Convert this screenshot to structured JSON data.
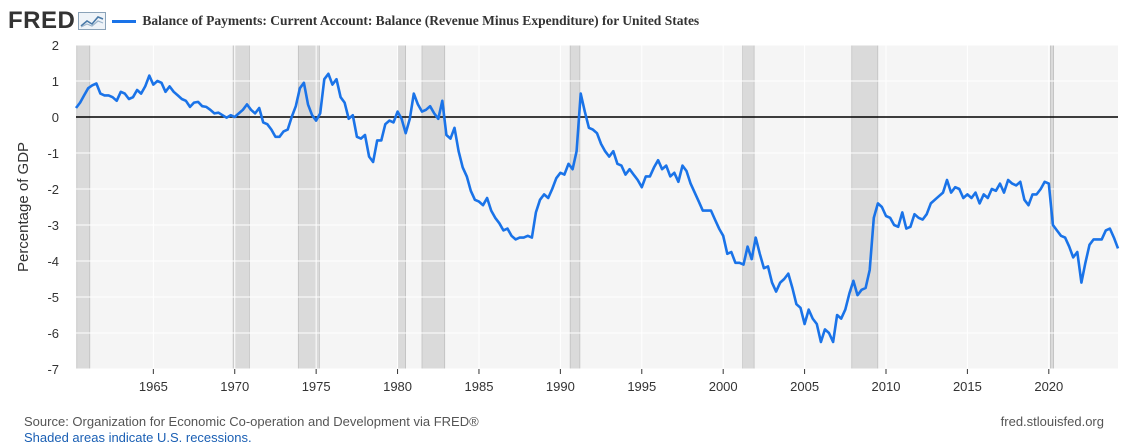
{
  "header": {
    "logo": "FRED",
    "logo_icon": "fred-chart-icon",
    "title": "Balance of Payments: Current Account: Balance (Revenue Minus Expenditure) for United States"
  },
  "footer": {
    "source": "Source: Organization for Economic Co-operation and Development via FRED®",
    "recession_note": "Shaded areas indicate U.S. recessions.",
    "site": "fred.stlouisfed.org"
  },
  "colors": {
    "line": "#1a73e8",
    "plot_bg": "#f5f5f5",
    "recession": "#dadada",
    "zero_line": "#000000"
  },
  "chart_data": {
    "type": "line",
    "title": "Balance of Payments: Current Account: Balance (Revenue Minus Expenditure) for United States",
    "xlabel": "",
    "ylabel": "Percentage of GDP",
    "xlim": [
      1960.25,
      2024.25
    ],
    "ylim": [
      -7,
      2
    ],
    "x_ticks": [
      1965,
      1970,
      1975,
      1980,
      1985,
      1990,
      1995,
      2000,
      2005,
      2010,
      2015,
      2020
    ],
    "y_ticks": [
      2,
      1,
      0,
      -1,
      -2,
      -3,
      -4,
      -5,
      -6,
      -7
    ],
    "grid": true,
    "zero_line": 0,
    "recessions": [
      [
        1960.3,
        1961.1
      ],
      [
        1969.9,
        1970.9
      ],
      [
        1973.9,
        1975.2
      ],
      [
        1980.0,
        1980.5
      ],
      [
        1981.5,
        1982.9
      ],
      [
        1990.6,
        1991.2
      ],
      [
        2001.2,
        2001.9
      ],
      [
        2007.9,
        2009.5
      ],
      [
        2020.1,
        2020.3
      ]
    ],
    "series": [
      {
        "points": [
          [
            1960.25,
            0.25
          ],
          [
            1960.5,
            0.4
          ],
          [
            1960.75,
            0.6
          ],
          [
            1961.0,
            0.8
          ],
          [
            1961.25,
            0.88
          ],
          [
            1961.5,
            0.93
          ],
          [
            1961.75,
            0.65
          ],
          [
            1962.0,
            0.6
          ],
          [
            1962.25,
            0.6
          ],
          [
            1962.5,
            0.55
          ],
          [
            1962.75,
            0.45
          ],
          [
            1963.0,
            0.7
          ],
          [
            1963.25,
            0.65
          ],
          [
            1963.5,
            0.5
          ],
          [
            1963.75,
            0.55
          ],
          [
            1964.0,
            0.75
          ],
          [
            1964.25,
            0.65
          ],
          [
            1964.5,
            0.85
          ],
          [
            1964.75,
            1.15
          ],
          [
            1965.0,
            0.9
          ],
          [
            1965.25,
            1.0
          ],
          [
            1965.5,
            0.95
          ],
          [
            1965.75,
            0.7
          ],
          [
            1966.0,
            0.85
          ],
          [
            1966.25,
            0.7
          ],
          [
            1966.5,
            0.6
          ],
          [
            1966.75,
            0.5
          ],
          [
            1967.0,
            0.45
          ],
          [
            1967.25,
            0.28
          ],
          [
            1967.5,
            0.4
          ],
          [
            1967.75,
            0.42
          ],
          [
            1968.0,
            0.3
          ],
          [
            1968.25,
            0.28
          ],
          [
            1968.5,
            0.2
          ],
          [
            1968.75,
            0.1
          ],
          [
            1969.0,
            0.12
          ],
          [
            1969.25,
            0.05
          ],
          [
            1969.5,
            -0.02
          ],
          [
            1969.75,
            0.05
          ],
          [
            1970.0,
            0.0
          ],
          [
            1970.25,
            0.1
          ],
          [
            1970.5,
            0.2
          ],
          [
            1970.75,
            0.35
          ],
          [
            1971.0,
            0.2
          ],
          [
            1971.25,
            0.1
          ],
          [
            1971.5,
            0.25
          ],
          [
            1971.75,
            -0.15
          ],
          [
            1972.0,
            -0.2
          ],
          [
            1972.25,
            -0.35
          ],
          [
            1972.5,
            -0.55
          ],
          [
            1972.75,
            -0.55
          ],
          [
            1973.0,
            -0.4
          ],
          [
            1973.25,
            -0.35
          ],
          [
            1973.5,
            0.0
          ],
          [
            1973.75,
            0.3
          ],
          [
            1974.0,
            0.8
          ],
          [
            1974.25,
            0.95
          ],
          [
            1974.5,
            0.35
          ],
          [
            1974.75,
            0.05
          ],
          [
            1975.0,
            -0.1
          ],
          [
            1975.25,
            0.1
          ],
          [
            1975.5,
            1.05
          ],
          [
            1975.75,
            1.2
          ],
          [
            1976.0,
            0.9
          ],
          [
            1976.25,
            1.05
          ],
          [
            1976.5,
            0.55
          ],
          [
            1976.75,
            0.4
          ],
          [
            1977.0,
            -0.05
          ],
          [
            1977.25,
            0.05
          ],
          [
            1977.5,
            -0.55
          ],
          [
            1977.75,
            -0.6
          ],
          [
            1978.0,
            -0.5
          ],
          [
            1978.25,
            -1.1
          ],
          [
            1978.5,
            -1.25
          ],
          [
            1978.75,
            -0.65
          ],
          [
            1979.0,
            -0.65
          ],
          [
            1979.25,
            -0.2
          ],
          [
            1979.5,
            -0.1
          ],
          [
            1979.75,
            -0.15
          ],
          [
            1980.0,
            0.15
          ],
          [
            1980.25,
            -0.05
          ],
          [
            1980.5,
            -0.45
          ],
          [
            1980.75,
            -0.05
          ],
          [
            1981.0,
            0.65
          ],
          [
            1981.25,
            0.35
          ],
          [
            1981.5,
            0.15
          ],
          [
            1981.75,
            0.2
          ],
          [
            1982.0,
            0.3
          ],
          [
            1982.25,
            0.1
          ],
          [
            1982.5,
            -0.05
          ],
          [
            1982.75,
            0.45
          ],
          [
            1983.0,
            -0.5
          ],
          [
            1983.25,
            -0.6
          ],
          [
            1983.5,
            -0.3
          ],
          [
            1983.75,
            -0.95
          ],
          [
            1984.0,
            -1.4
          ],
          [
            1984.25,
            -1.65
          ],
          [
            1984.5,
            -2.05
          ],
          [
            1984.75,
            -2.3
          ],
          [
            1985.0,
            -2.35
          ],
          [
            1985.25,
            -2.45
          ],
          [
            1985.5,
            -2.25
          ],
          [
            1985.75,
            -2.6
          ],
          [
            1986.0,
            -2.8
          ],
          [
            1986.25,
            -2.95
          ],
          [
            1986.5,
            -3.15
          ],
          [
            1986.75,
            -3.1
          ],
          [
            1987.0,
            -3.3
          ],
          [
            1987.25,
            -3.4
          ],
          [
            1987.5,
            -3.35
          ],
          [
            1987.75,
            -3.35
          ],
          [
            1988.0,
            -3.3
          ],
          [
            1988.25,
            -3.35
          ],
          [
            1988.5,
            -2.65
          ],
          [
            1988.75,
            -2.3
          ],
          [
            1989.0,
            -2.15
          ],
          [
            1989.25,
            -2.25
          ],
          [
            1989.5,
            -2.0
          ],
          [
            1989.75,
            -1.7
          ],
          [
            1990.0,
            -1.55
          ],
          [
            1990.25,
            -1.6
          ],
          [
            1990.5,
            -1.3
          ],
          [
            1990.75,
            -1.45
          ],
          [
            1991.0,
            -0.95
          ],
          [
            1991.25,
            0.65
          ],
          [
            1991.5,
            0.15
          ],
          [
            1991.75,
            -0.3
          ],
          [
            1992.0,
            -0.35
          ],
          [
            1992.25,
            -0.45
          ],
          [
            1992.5,
            -0.75
          ],
          [
            1992.75,
            -0.95
          ],
          [
            1993.0,
            -1.1
          ],
          [
            1993.25,
            -0.95
          ],
          [
            1993.5,
            -1.3
          ],
          [
            1993.75,
            -1.35
          ],
          [
            1994.0,
            -1.6
          ],
          [
            1994.25,
            -1.45
          ],
          [
            1994.5,
            -1.6
          ],
          [
            1994.75,
            -1.75
          ],
          [
            1995.0,
            -1.95
          ],
          [
            1995.25,
            -1.65
          ],
          [
            1995.5,
            -1.65
          ],
          [
            1995.75,
            -1.4
          ],
          [
            1996.0,
            -1.2
          ],
          [
            1996.25,
            -1.45
          ],
          [
            1996.5,
            -1.35
          ],
          [
            1996.75,
            -1.65
          ],
          [
            1997.0,
            -1.55
          ],
          [
            1997.25,
            -1.8
          ],
          [
            1997.5,
            -1.35
          ],
          [
            1997.75,
            -1.5
          ],
          [
            1998.0,
            -1.85
          ],
          [
            1998.25,
            -2.1
          ],
          [
            1998.5,
            -2.35
          ],
          [
            1998.75,
            -2.6
          ],
          [
            1999.0,
            -2.6
          ],
          [
            1999.25,
            -2.6
          ],
          [
            1999.5,
            -2.85
          ],
          [
            1999.75,
            -3.1
          ],
          [
            2000.0,
            -3.3
          ],
          [
            2000.25,
            -3.8
          ],
          [
            2000.5,
            -3.75
          ],
          [
            2000.75,
            -4.05
          ],
          [
            2001.0,
            -4.05
          ],
          [
            2001.25,
            -4.1
          ],
          [
            2001.5,
            -3.6
          ],
          [
            2001.75,
            -3.95
          ],
          [
            2002.0,
            -3.35
          ],
          [
            2002.25,
            -3.8
          ],
          [
            2002.5,
            -4.2
          ],
          [
            2002.75,
            -4.15
          ],
          [
            2003.0,
            -4.6
          ],
          [
            2003.25,
            -4.85
          ],
          [
            2003.5,
            -4.6
          ],
          [
            2003.75,
            -4.5
          ],
          [
            2004.0,
            -4.35
          ],
          [
            2004.25,
            -4.75
          ],
          [
            2004.5,
            -5.2
          ],
          [
            2004.75,
            -5.3
          ],
          [
            2005.0,
            -5.75
          ],
          [
            2005.25,
            -5.35
          ],
          [
            2005.5,
            -5.6
          ],
          [
            2005.75,
            -5.75
          ],
          [
            2006.0,
            -6.25
          ],
          [
            2006.25,
            -5.9
          ],
          [
            2006.5,
            -6.0
          ],
          [
            2006.75,
            -6.25
          ],
          [
            2007.0,
            -5.5
          ],
          [
            2007.25,
            -5.6
          ],
          [
            2007.5,
            -5.35
          ],
          [
            2007.75,
            -4.9
          ],
          [
            2008.0,
            -4.55
          ],
          [
            2008.25,
            -4.95
          ],
          [
            2008.5,
            -4.8
          ],
          [
            2008.75,
            -4.75
          ],
          [
            2009.0,
            -4.25
          ],
          [
            2009.25,
            -2.8
          ],
          [
            2009.5,
            -2.4
          ],
          [
            2009.75,
            -2.5
          ],
          [
            2010.0,
            -2.75
          ],
          [
            2010.25,
            -2.8
          ],
          [
            2010.5,
            -3.0
          ],
          [
            2010.75,
            -3.05
          ],
          [
            2011.0,
            -2.65
          ],
          [
            2011.25,
            -3.1
          ],
          [
            2011.5,
            -3.05
          ],
          [
            2011.75,
            -2.7
          ],
          [
            2012.0,
            -2.8
          ],
          [
            2012.25,
            -2.85
          ],
          [
            2012.5,
            -2.7
          ],
          [
            2012.75,
            -2.4
          ],
          [
            2013.0,
            -2.3
          ],
          [
            2013.25,
            -2.2
          ],
          [
            2013.5,
            -2.1
          ],
          [
            2013.75,
            -1.75
          ],
          [
            2014.0,
            -2.1
          ],
          [
            2014.25,
            -1.95
          ],
          [
            2014.5,
            -2.0
          ],
          [
            2014.75,
            -2.25
          ],
          [
            2015.0,
            -2.15
          ],
          [
            2015.25,
            -2.25
          ],
          [
            2015.5,
            -2.1
          ],
          [
            2015.75,
            -2.4
          ],
          [
            2016.0,
            -2.15
          ],
          [
            2016.25,
            -2.25
          ],
          [
            2016.5,
            -2.0
          ],
          [
            2016.75,
            -2.05
          ],
          [
            2017.0,
            -1.85
          ],
          [
            2017.25,
            -2.1
          ],
          [
            2017.5,
            -1.75
          ],
          [
            2017.75,
            -1.85
          ],
          [
            2018.0,
            -1.9
          ],
          [
            2018.25,
            -1.8
          ],
          [
            2018.5,
            -2.3
          ],
          [
            2018.75,
            -2.45
          ],
          [
            2019.0,
            -2.15
          ],
          [
            2019.25,
            -2.15
          ],
          [
            2019.5,
            -2.0
          ],
          [
            2019.75,
            -1.8
          ],
          [
            2020.0,
            -1.85
          ],
          [
            2020.25,
            -3.0
          ],
          [
            2020.5,
            -3.15
          ],
          [
            2020.75,
            -3.3
          ],
          [
            2021.0,
            -3.35
          ],
          [
            2021.25,
            -3.6
          ],
          [
            2021.5,
            -3.9
          ],
          [
            2021.75,
            -3.75
          ],
          [
            2022.0,
            -4.6
          ],
          [
            2022.25,
            -4.05
          ],
          [
            2022.5,
            -3.55
          ],
          [
            2022.75,
            -3.4
          ],
          [
            2023.0,
            -3.4
          ],
          [
            2023.25,
            -3.4
          ],
          [
            2023.5,
            -3.15
          ],
          [
            2023.75,
            -3.1
          ],
          [
            2024.0,
            -3.35
          ],
          [
            2024.25,
            -3.65
          ]
        ]
      }
    ]
  }
}
